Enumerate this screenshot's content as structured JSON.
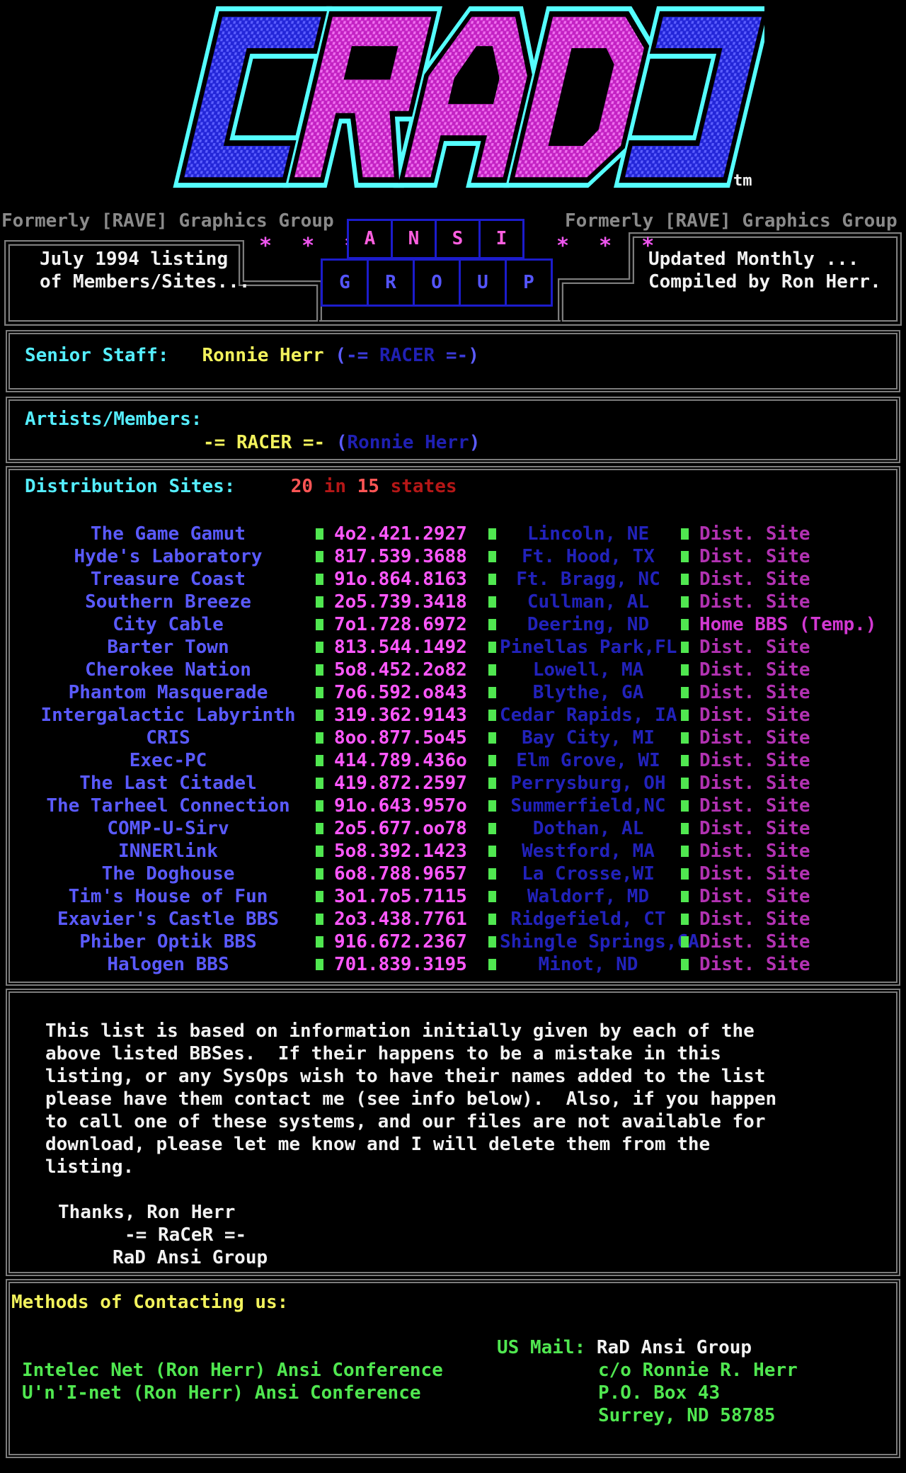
{
  "palette": {
    "cyan": "#55eeff",
    "yellow": "#f2f25c",
    "white": "#f2f2f2",
    "gray": "#8a8a8a",
    "borderGray": "#7c7c7c",
    "brightRed": "#ff5555",
    "darkRed": "#b51717",
    "brightBlue": "#5c5cff",
    "midBlue": "#3b3bd8",
    "darkBlue": "#2020b4",
    "nameBlue": "#5a5aff",
    "phonePink": "#ff58ff",
    "locBlue": "#2222bb",
    "statusMagenta": "#b232b2",
    "homeMagenta": "#d238d2",
    "green": "#50e750",
    "boxBlue": "#1c1ccc",
    "ansiPink": "#ff5fe0",
    "groupBlue": "#5555ff",
    "starPink": "#ee55ee",
    "logoCyan": "#55ffff",
    "logoBlue": "#2326d8",
    "logoBlueDot": "#5b5eff",
    "logoMagenta": "#c322c3",
    "logoMagentaDot": "#ef70ef"
  },
  "logo": {
    "text": "[RAD]",
    "trademark": "tm"
  },
  "header": {
    "formerly": "Formerly [RAVE] Graphics Group",
    "left_box": {
      "line1": "July 1994 listing",
      "line2": "of Members/Sites..."
    },
    "right_box": {
      "line1": "Updated Monthly ...",
      "line2": "Compiled by Ron Herr."
    },
    "stars": "* * *",
    "ansi_letters": [
      "A",
      "N",
      "S",
      "I"
    ],
    "group_letters": [
      "G",
      "R",
      "O",
      "U",
      "P"
    ]
  },
  "senior": {
    "label": "Senior Staff:",
    "name": "Ronnie Herr",
    "paren_open": "(",
    "tag_left": "-=",
    "handle": "RACER",
    "tag_right": "=-",
    "paren_close": ")"
  },
  "artists": {
    "label": "Artists/Members:",
    "tag": "-= RACER =-",
    "paren_open": "(",
    "name": "Ronnie Herr",
    "paren_close": ")"
  },
  "distribution": {
    "label": "Distribution Sites:",
    "count": "20",
    "in_word": "in",
    "state_count": "15",
    "states_word": "states",
    "sites": [
      {
        "name": "The Game Gamut",
        "phone": "4o2.421.2927",
        "location": "Lincoln, NE",
        "status": "Dist. Site"
      },
      {
        "name": "Hyde's Laboratory",
        "phone": "817.539.3688",
        "location": "Ft. Hood, TX",
        "status": "Dist. Site"
      },
      {
        "name": "Treasure Coast",
        "phone": "91o.864.8163",
        "location": "Ft. Bragg, NC",
        "status": "Dist. Site"
      },
      {
        "name": "Southern Breeze",
        "phone": "2o5.739.3418",
        "location": "Cullman, AL",
        "status": "Dist. Site"
      },
      {
        "name": "City Cable",
        "phone": "7o1.728.6972",
        "location": "Deering, ND",
        "status": "Home BBS (Temp.)"
      },
      {
        "name": "Barter Town",
        "phone": "813.544.1492",
        "location": "Pinellas Park,FL",
        "status": "Dist. Site"
      },
      {
        "name": "Cherokee Nation",
        "phone": "5o8.452.2o82",
        "location": "Lowell, MA",
        "status": "Dist. Site"
      },
      {
        "name": "Phantom Masquerade",
        "phone": "7o6.592.o843",
        "location": "Blythe, GA",
        "status": "Dist. Site"
      },
      {
        "name": "Intergalactic Labyrinth",
        "phone": "319.362.9143",
        "location": "Cedar Rapids, IA",
        "status": "Dist. Site"
      },
      {
        "name": "CRIS",
        "phone": "8oo.877.5o45",
        "location": "Bay City, MI",
        "status": "Dist. Site"
      },
      {
        "name": "Exec-PC",
        "phone": "414.789.436o",
        "location": "Elm Grove, WI",
        "status": "Dist. Site"
      },
      {
        "name": "The Last Citadel",
        "phone": "419.872.2597",
        "location": "Perrysburg, OH",
        "status": "Dist. Site"
      },
      {
        "name": "The Tarheel Connection",
        "phone": "91o.643.957o",
        "location": "Summerfield,NC",
        "status": "Dist. Site"
      },
      {
        "name": "COMP-U-Sirv",
        "phone": "2o5.677.oo78",
        "location": "Dothan, AL",
        "status": "Dist. Site"
      },
      {
        "name": "INNERlink",
        "phone": "5o8.392.1423",
        "location": "Westford, MA",
        "status": "Dist. Site"
      },
      {
        "name": "The Doghouse",
        "phone": "6o8.788.9657",
        "location": "La Crosse,WI",
        "status": "Dist. Site"
      },
      {
        "name": "Tim's House of Fun",
        "phone": "3o1.7o5.7115",
        "location": "Waldorf, MD",
        "status": "Dist. Site"
      },
      {
        "name": "Exavier's Castle BBS",
        "phone": "2o3.438.7761",
        "location": "Ridgefield, CT",
        "status": "Dist. Site"
      },
      {
        "name": "Phiber Optik BBS",
        "phone": "916.672.2367",
        "location": "Shingle Springs,CA",
        "status": "Dist. Site"
      },
      {
        "name": "Halogen BBS",
        "phone": "701.839.3195",
        "location": "Minot, ND",
        "status": "Dist. Site"
      }
    ]
  },
  "notes": {
    "lines": [
      "This list is based on information initially given by each of the",
      "above listed BBSes.  If their happens to be a mistake in this",
      "listing, or any SysOps wish to have their names added to the list",
      "please have them contact me (see info below).  Also, if you happen",
      "to call one of these systems, and our files are not available for",
      "download, please let me know and I will delete them from the",
      "listing."
    ],
    "thanks_line1": "Thanks, Ron Herr",
    "thanks_line2": "-= RaCeR =-",
    "thanks_line3": "RaD Ansi Group"
  },
  "contact": {
    "label": "Methods of Contacting us:",
    "us_mail_label": "US Mail:",
    "us_mail_value": "RaD Ansi Group",
    "networks": [
      "Intelec Net (Ron Herr) Ansi Conference",
      "U'n'I-net (Ron Herr) Ansi Conference"
    ],
    "address": [
      "c/o Ronnie R. Herr",
      "P.O. Box 43",
      "Surrey, ND 58785"
    ]
  }
}
